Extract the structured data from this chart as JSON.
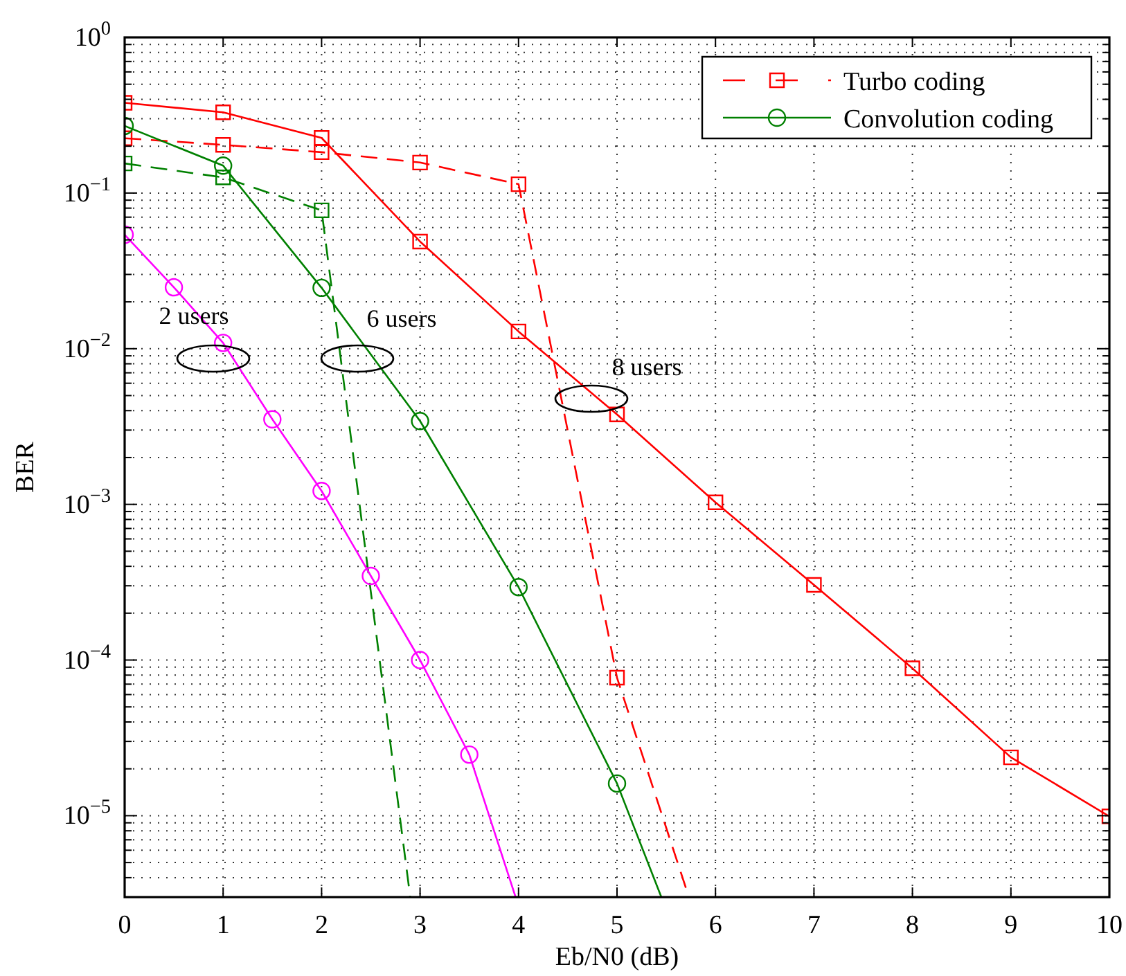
{
  "chart_data": {
    "type": "line",
    "xlabel": "Eb/N0 (dB)",
    "ylabel": "BER",
    "log": "y",
    "xlim": [
      0,
      10
    ],
    "xticks": [
      0,
      1,
      2,
      3,
      4,
      5,
      6,
      7,
      8,
      9,
      10
    ],
    "ylim": [
      3e-06,
      1
    ],
    "yticks": [
      {
        "value": 1,
        "label": "10$^{0}$"
      },
      {
        "value": 0.1,
        "label": "10$^{−1}$"
      },
      {
        "value": 0.01,
        "label": "10$^{−2}$"
      },
      {
        "value": 0.001,
        "label": "10$^{−3}$"
      },
      {
        "value": 0.0001,
        "label": "10$^{−4}$"
      },
      {
        "value": 1e-05,
        "label": "10$^{−5}$"
      }
    ],
    "grid": true,
    "legend": "top right",
    "series": [
      {
        "name": "Turbo coding",
        "color": "#ff0000",
        "marker": "square",
        "line_style": "dashed",
        "x": [
          0,
          1,
          2,
          3,
          4,
          5,
          5.73
        ],
        "values": [
          0.225,
          0.204,
          0.183,
          0.157,
          0.114,
          7.7e-05,
          3e-06
        ]
      },
      {
        "color": "#ff0000",
        "marker": "square",
        "line_style": "solid",
        "x": [
          0,
          1,
          2,
          3,
          4,
          5,
          6,
          7,
          8,
          9,
          10
        ],
        "values": [
          0.38,
          0.33,
          0.226,
          0.0488,
          0.0129,
          0.00378,
          0.00103,
          0.000304,
          8.85e-05,
          2.37e-05,
          9.9e-06
        ]
      },
      {
        "color": "#008000",
        "marker": "square",
        "line_style": "dashed",
        "x": [
          0,
          1,
          2,
          2.9
        ],
        "values": [
          0.155,
          0.126,
          0.0774,
          3e-06
        ]
      },
      {
        "name": "Convolution coding",
        "color": "#008000",
        "marker": "circle",
        "line_style": "solid",
        "x": [
          0,
          1,
          2,
          3,
          4,
          5,
          5.45
        ],
        "values": [
          0.27,
          0.15,
          0.0246,
          0.00343,
          0.000294,
          1.61e-05,
          3e-06
        ]
      },
      {
        "color": "#ff00ff",
        "marker": "circle",
        "line_style": "solid",
        "x": [
          0,
          0.5,
          1,
          1.5,
          2,
          2.5,
          3,
          3.5,
          3.97
        ],
        "values": [
          0.054,
          0.0248,
          0.0109,
          0.00352,
          0.00122,
          0.000347,
          0.0001,
          2.47e-05,
          3e-06
        ]
      }
    ],
    "annotations": [
      "2 users",
      "6 users",
      "8 users"
    ]
  }
}
